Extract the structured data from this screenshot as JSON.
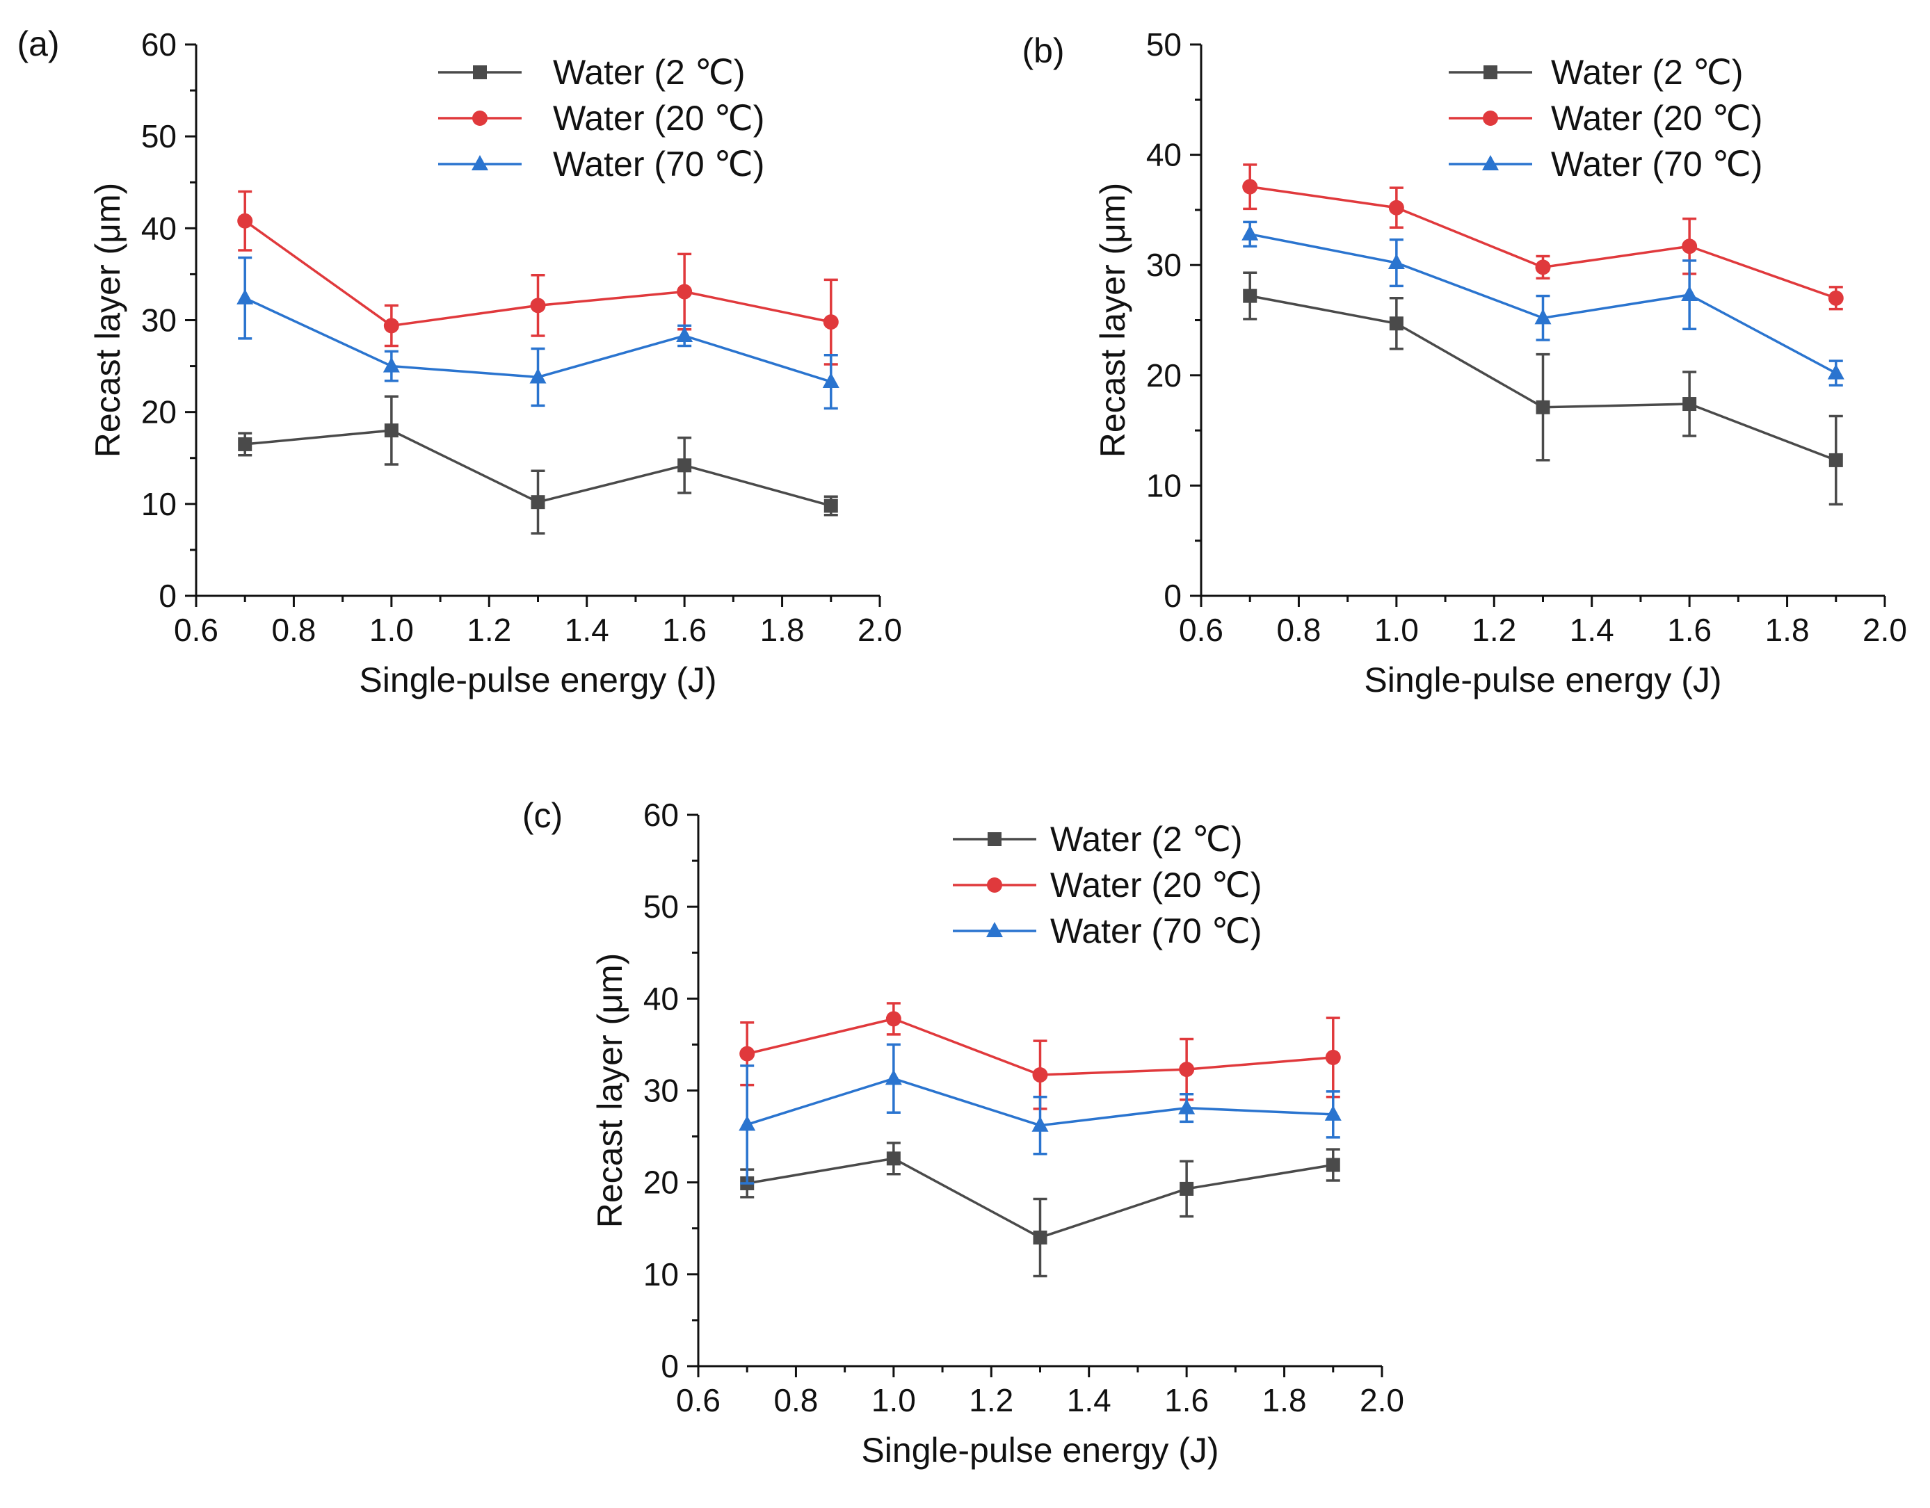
{
  "figure": {
    "panels": [
      "(a)",
      "(b)",
      "(c)"
    ]
  },
  "colors": {
    "water_2": "#4a4a4a",
    "water_20": "#e0393c",
    "water_70": "#2a74cf",
    "axis": "#111111"
  },
  "chart_data": [
    {
      "panel_label": "(a)",
      "type": "line",
      "xlabel": "Single-pulse energy (J)",
      "ylabel": "Recast layer (μm)",
      "xlim": [
        0.6,
        2.0
      ],
      "ylim": [
        0,
        60
      ],
      "xticks": [
        "0.6",
        "0.8",
        "1.0",
        "1.2",
        "1.4",
        "1.6",
        "1.8",
        "2.0"
      ],
      "yticks": [
        "0",
        "10",
        "20",
        "30",
        "40",
        "50",
        "60"
      ],
      "x": [
        0.7,
        1.0,
        1.3,
        1.6,
        1.9
      ],
      "legend_position": "top-right",
      "series": [
        {
          "name": "Water (2 ℃)",
          "color": "#4a4a4a",
          "marker": "square",
          "values": [
            16.5,
            18.0,
            10.2,
            14.2,
            9.8
          ],
          "errors": [
            1.2,
            3.7,
            3.4,
            3.0,
            1.0
          ]
        },
        {
          "name": "Water (20 ℃)",
          "color": "#e0393c",
          "marker": "circle",
          "values": [
            40.8,
            29.4,
            31.6,
            33.1,
            29.8
          ],
          "errors": [
            3.2,
            2.2,
            3.3,
            4.1,
            4.6
          ]
        },
        {
          "name": "Water (70 ℃)",
          "color": "#2a74cf",
          "marker": "triangle",
          "values": [
            32.4,
            25.0,
            23.8,
            28.3,
            23.3
          ],
          "errors": [
            4.4,
            1.6,
            3.1,
            1.1,
            2.9
          ]
        }
      ]
    },
    {
      "panel_label": "(b)",
      "type": "line",
      "xlabel": "Single-pulse energy (J)",
      "ylabel": "Recast layer (μm)",
      "xlim": [
        0.6,
        2.0
      ],
      "ylim": [
        0,
        50
      ],
      "xticks": [
        "0.6",
        "0.8",
        "1.0",
        "1.2",
        "1.4",
        "1.6",
        "1.8",
        "2.0"
      ],
      "yticks": [
        "0",
        "10",
        "20",
        "30",
        "40",
        "50"
      ],
      "x": [
        0.7,
        1.0,
        1.3,
        1.6,
        1.9
      ],
      "legend_position": "top-right",
      "series": [
        {
          "name": "Water (2 ℃)",
          "color": "#4a4a4a",
          "marker": "square",
          "values": [
            27.2,
            24.7,
            17.1,
            17.4,
            12.3
          ],
          "errors": [
            2.1,
            2.3,
            4.8,
            2.9,
            4.0
          ]
        },
        {
          "name": "Water (20 ℃)",
          "color": "#e0393c",
          "marker": "circle",
          "values": [
            37.1,
            35.2,
            29.8,
            31.7,
            27.0
          ],
          "errors": [
            2.0,
            1.8,
            1.0,
            2.5,
            1.0
          ]
        },
        {
          "name": "Water (70 ℃)",
          "color": "#2a74cf",
          "marker": "triangle",
          "values": [
            32.8,
            30.2,
            25.2,
            27.3,
            20.2
          ],
          "errors": [
            1.1,
            2.1,
            2.0,
            3.1,
            1.1
          ]
        }
      ]
    },
    {
      "panel_label": "(c)",
      "type": "line",
      "xlabel": "Single-pulse energy (J)",
      "ylabel": "Recast layer (μm)",
      "xlim": [
        0.6,
        2.0
      ],
      "ylim": [
        0,
        60
      ],
      "xticks": [
        "0.6",
        "0.8",
        "1.0",
        "1.2",
        "1.4",
        "1.6",
        "1.8",
        "2.0"
      ],
      "yticks": [
        "0",
        "10",
        "20",
        "30",
        "40",
        "50",
        "60"
      ],
      "x": [
        0.7,
        1.0,
        1.3,
        1.6,
        1.9
      ],
      "legend_position": "top-center",
      "series": [
        {
          "name": "Water (2 ℃)",
          "color": "#4a4a4a",
          "marker": "square",
          "values": [
            19.9,
            22.6,
            14.0,
            19.3,
            21.9
          ],
          "errors": [
            1.5,
            1.7,
            4.2,
            3.0,
            1.7
          ]
        },
        {
          "name": "Water (20 ℃)",
          "color": "#e0393c",
          "marker": "circle",
          "values": [
            34.0,
            37.8,
            31.7,
            32.3,
            33.6
          ],
          "errors": [
            3.4,
            1.7,
            3.7,
            3.3,
            4.3
          ]
        },
        {
          "name": "Water (70 ℃)",
          "color": "#2a74cf",
          "marker": "triangle",
          "values": [
            26.3,
            31.3,
            26.2,
            28.1,
            27.4
          ],
          "errors": [
            6.4,
            3.7,
            3.1,
            1.5,
            2.5
          ]
        }
      ]
    }
  ]
}
